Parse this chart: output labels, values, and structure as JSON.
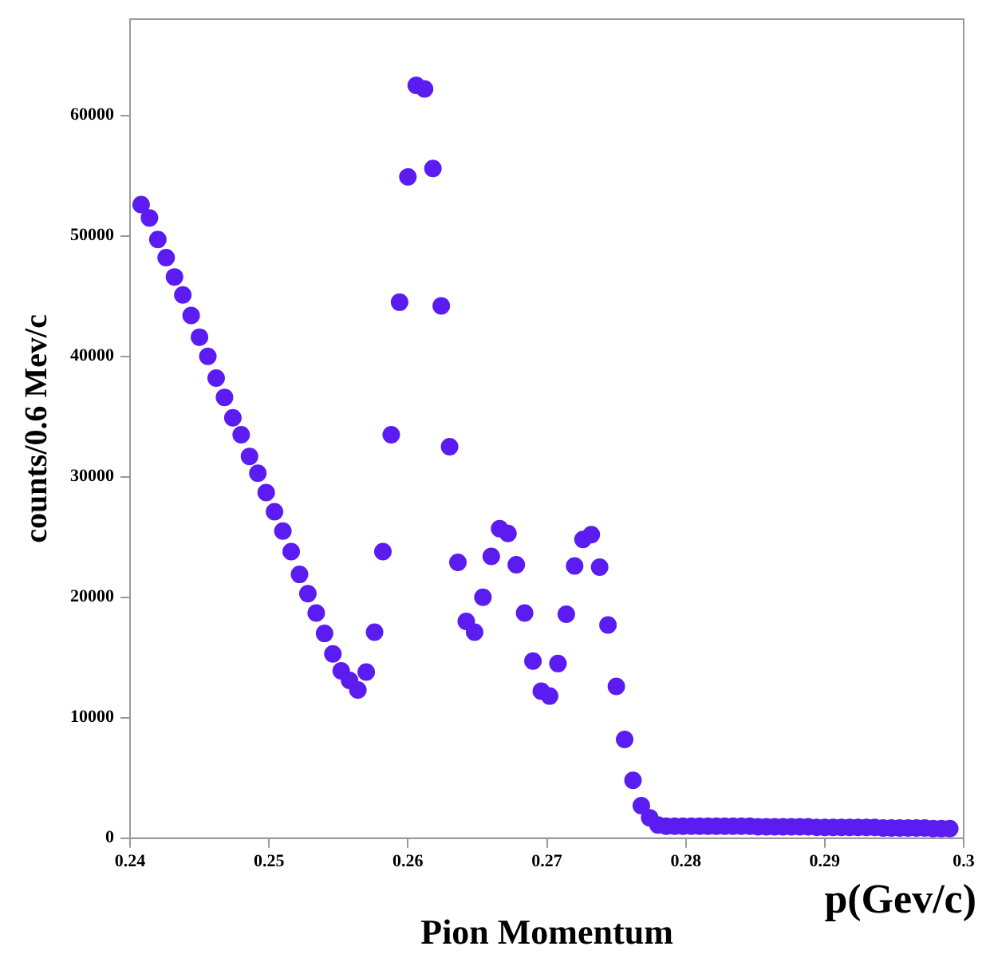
{
  "chart_data": {
    "type": "scatter",
    "xlabel": "Pion Momentum",
    "ylabel": "counts/0.6 Mev/c",
    "annotations": [
      "p(Gev/c)"
    ],
    "color": "#5b1cf2",
    "marker": "circle",
    "grid": false,
    "legend": false,
    "xlim": [
      0.24,
      0.3
    ],
    "xticks": [
      0.24,
      0.25,
      0.26,
      0.27,
      0.28,
      0.29,
      0.3
    ],
    "ylim": [
      0,
      68000
    ],
    "yticks": [
      0,
      10000,
      20000,
      30000,
      40000,
      50000,
      60000
    ],
    "x": [
      0.2408,
      0.2414,
      0.242,
      0.2426,
      0.2432,
      0.2438,
      0.2444,
      0.245,
      0.2456,
      0.2462,
      0.2468,
      0.2474,
      0.248,
      0.2486,
      0.2492,
      0.2498,
      0.2504,
      0.251,
      0.2516,
      0.2522,
      0.2528,
      0.2534,
      0.254,
      0.2546,
      0.2552,
      0.2558,
      0.2564,
      0.257,
      0.2576,
      0.2582,
      0.2588,
      0.2594,
      0.26,
      0.2606,
      0.2612,
      0.2618,
      0.2624,
      0.263,
      0.2636,
      0.2642,
      0.2648,
      0.2654,
      0.266,
      0.2666,
      0.2672,
      0.2678,
      0.2684,
      0.269,
      0.2696,
      0.2702,
      0.2708,
      0.2714,
      0.272,
      0.2726,
      0.2732,
      0.2738,
      0.2744,
      0.275,
      0.2756,
      0.2762,
      0.2768,
      0.2774,
      0.278,
      0.2786,
      0.2792,
      0.2798,
      0.2804,
      0.281,
      0.2816,
      0.2822,
      0.2828,
      0.2834,
      0.284,
      0.2846,
      0.2852,
      0.2858,
      0.2864,
      0.287,
      0.2876,
      0.2882,
      0.2888,
      0.2894,
      0.29,
      0.2906,
      0.2912,
      0.2918,
      0.2924,
      0.293,
      0.2936,
      0.2942,
      0.2948,
      0.2954,
      0.296,
      0.2966,
      0.2972,
      0.2978,
      0.2984,
      0.299
    ],
    "values": [
      52600,
      51500,
      49700,
      48200,
      46600,
      45100,
      43400,
      41600,
      40000,
      38200,
      36600,
      34900,
      33500,
      31700,
      30300,
      28700,
      27100,
      25500,
      23800,
      21900,
      20300,
      18700,
      17000,
      15300,
      13900,
      13100,
      12300,
      13800,
      17100,
      23800,
      33500,
      44500,
      54900,
      62500,
      62200,
      55600,
      44200,
      32500,
      22900,
      18000,
      17100,
      20000,
      23400,
      25700,
      25300,
      22700,
      18700,
      14700,
      12200,
      11800,
      14500,
      18600,
      22600,
      24800,
      25200,
      22500,
      17700,
      12600,
      8200,
      4800,
      2700,
      1700,
      1100,
      1000,
      1000,
      1000,
      1000,
      1000,
      1000,
      1000,
      1000,
      1000,
      1000,
      1000,
      950,
      950,
      950,
      950,
      950,
      950,
      950,
      900,
      900,
      900,
      900,
      900,
      900,
      900,
      900,
      850,
      850,
      850,
      850,
      850,
      850,
      800,
      800,
      800
    ]
  }
}
